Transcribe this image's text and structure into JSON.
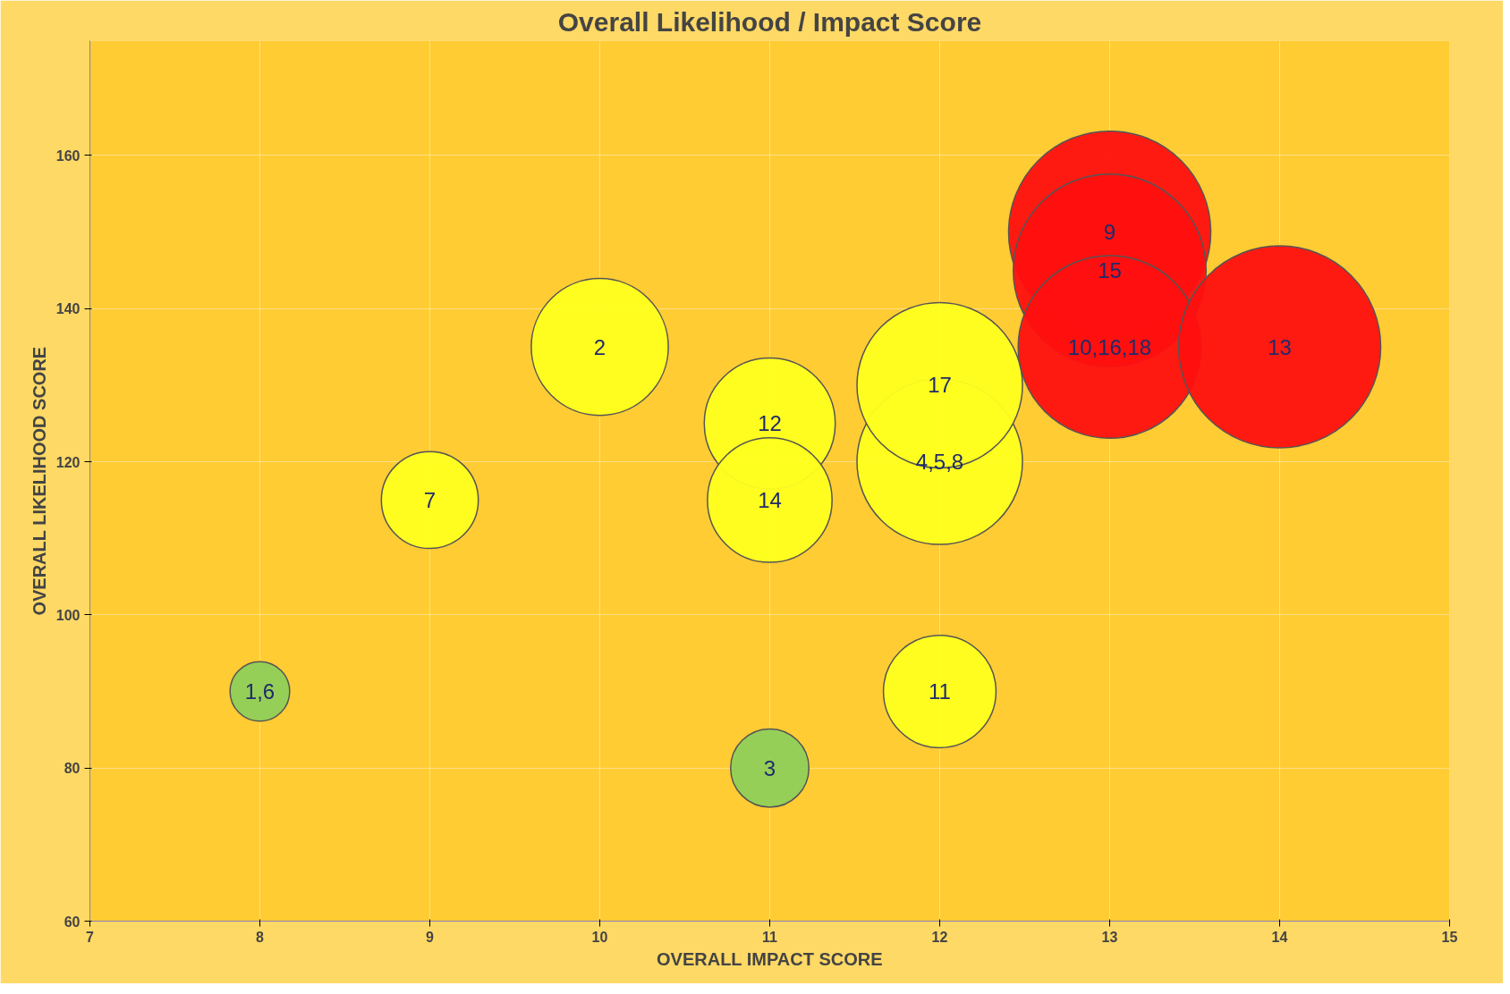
{
  "chart_data": {
    "type": "bubble",
    "title": "Overall Likelihood / Impact Score",
    "xlabel": "OVERALL IMPACT SCORE",
    "ylabel": "OVERALL LIKELIHOOD SCORE",
    "x": [
      8,
      11,
      9,
      10,
      11,
      11,
      12,
      12,
      12,
      13,
      13,
      13,
      14
    ],
    "values": [
      90,
      80,
      115,
      135,
      125,
      115,
      90,
      120,
      130,
      150,
      145,
      135,
      135
    ],
    "sizes": [
      0.087,
      0.15,
      0.23,
      0.46,
      0.42,
      0.38,
      0.31,
      0.67,
      0.67,
      1,
      0.91,
      0.82,
      1
    ],
    "colors": [
      "#8fcf5a",
      "#8fcf5a",
      "#ffff20",
      "#ffff20",
      "#ffff20",
      "#ffff20",
      "#ffff20",
      "#ffff20",
      "#ffff20",
      "#ff1010",
      "#ff1010",
      "#ff1010",
      "#ff1010"
    ],
    "annotations": [
      {
        "text": "1,6",
        "x": 8,
        "y": 90
      },
      {
        "text": "3",
        "x": 11,
        "y": 80
      },
      {
        "text": "7",
        "x": 9,
        "y": 115
      },
      {
        "text": "2",
        "x": 10,
        "y": 135
      },
      {
        "text": "12",
        "x": 11,
        "y": 125
      },
      {
        "text": "14",
        "x": 11,
        "y": 115
      },
      {
        "text": "11",
        "x": 12,
        "y": 90
      },
      {
        "text": "4,5,8",
        "x": 12,
        "y": 120
      },
      {
        "text": "17",
        "x": 12,
        "y": 130
      },
      {
        "text": "9",
        "x": 13,
        "y": 150
      },
      {
        "text": "15",
        "x": 13,
        "y": 145
      },
      {
        "text": "10,16,18",
        "x": 13,
        "y": 135
      },
      {
        "text": "13",
        "x": 14,
        "y": 135
      }
    ],
    "xlim": [
      7,
      15
    ],
    "ylim": [
      60,
      175
    ],
    "xticks": [
      7,
      8,
      9,
      10,
      11,
      12,
      13,
      14,
      15
    ],
    "yticks": [
      60,
      80,
      100,
      120,
      140,
      160
    ],
    "grid": true
  }
}
